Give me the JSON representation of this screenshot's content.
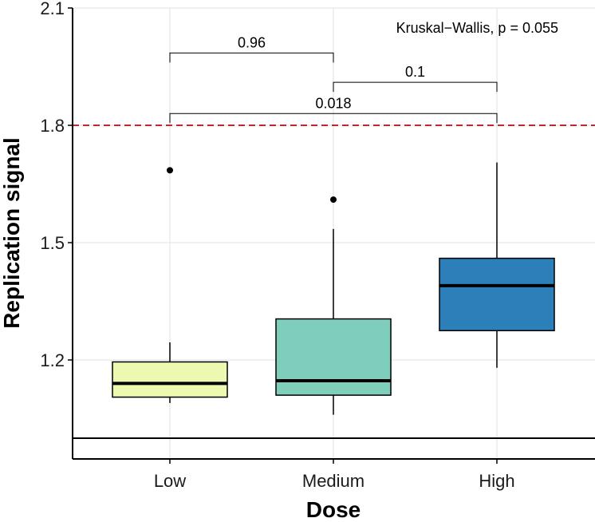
{
  "chart_data": {
    "type": "boxplot",
    "xlabel": "Dose",
    "ylabel": "Replication signal",
    "categories": [
      "Low",
      "Medium",
      "High"
    ],
    "ylim": [
      0.95,
      2.1
    ],
    "yticks": [
      {
        "value": 1.2,
        "label": "1.2"
      },
      {
        "value": 1.5,
        "label": "1.5"
      },
      {
        "value": 1.8,
        "label": "1.8"
      },
      {
        "value": 2.1,
        "label": "2.1"
      }
    ],
    "grid": true,
    "boxes": [
      {
        "category": "Low",
        "fill": "#EDF8B1",
        "whisker_low": 1.09,
        "q1": 1.105,
        "median": 1.14,
        "q3": 1.195,
        "whisker_high": 1.245,
        "outliers": [
          1.685
        ]
      },
      {
        "category": "Medium",
        "fill": "#7FCDBB",
        "whisker_low": 1.06,
        "q1": 1.11,
        "median": 1.147,
        "q3": 1.305,
        "whisker_high": 1.535,
        "outliers": [
          1.61
        ]
      },
      {
        "category": "High",
        "fill": "#2C7FB8",
        "whisker_low": 1.18,
        "q1": 1.275,
        "median": 1.39,
        "q3": 1.46,
        "whisker_high": 1.705,
        "outliers": []
      }
    ],
    "reference_lines": [
      {
        "value": 1.8,
        "style": "dashed",
        "color": "#C0282D"
      },
      {
        "value": 1.0,
        "style": "solid",
        "color": "#000000"
      }
    ],
    "brackets": [
      {
        "from": "Low",
        "to": "Medium",
        "y": 1.985,
        "label": "0.96"
      },
      {
        "from": "Medium",
        "to": "High",
        "y": 1.91,
        "label": "0.1"
      },
      {
        "from": "Low",
        "to": "High",
        "y": 1.83,
        "label": "0.018"
      }
    ],
    "annotation": "Kruskal−Wallis, p = 0.055",
    "colors": {
      "axis": "#000000",
      "grid": "#EBEBEB",
      "outlier": "#000000"
    }
  }
}
